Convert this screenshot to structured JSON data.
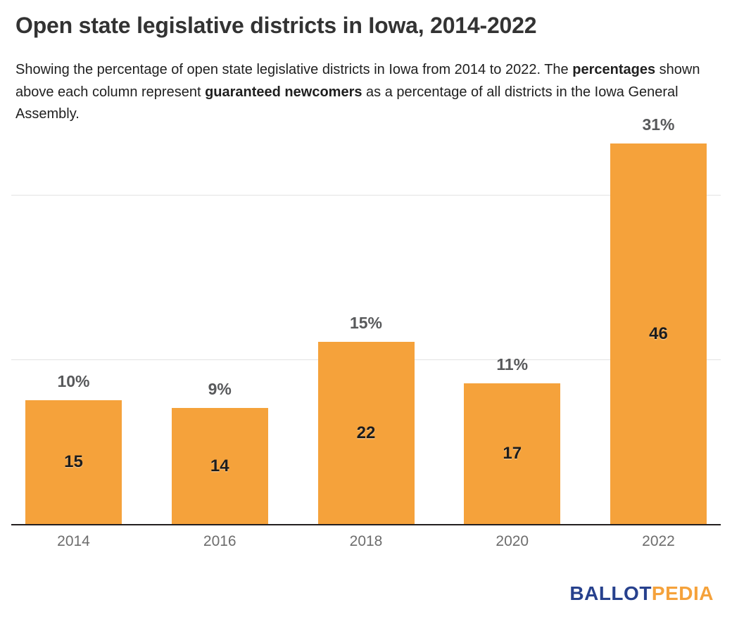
{
  "chart": {
    "title": "Open state legislative districts in Iowa, 2014-2022",
    "subtitle_parts": {
      "p1": "Showing the percentage of open state legislative districts in Iowa from 2014 to 2022. The ",
      "p2": "percentages",
      "p3": " shown above each column represent ",
      "p4": "guaranteed newcomers",
      "p5": " as a percentage of all districts in the Iowa General Assembly."
    }
  },
  "chart_data": {
    "type": "bar",
    "title": "Open state legislative districts in Iowa, 2014-2022",
    "categories": [
      "2014",
      "2016",
      "2018",
      "2020",
      "2022"
    ],
    "values": [
      15,
      14,
      22,
      17,
      46
    ],
    "percent_labels": [
      "10%",
      "9%",
      "15%",
      "11%",
      "31%"
    ],
    "xlabel": "",
    "ylabel": "",
    "ylim": [
      0,
      46
    ],
    "grid": "horizontal",
    "legend": "none",
    "bar_color": "#f5a23b",
    "value_label_position": "inside-center",
    "percent_label_position": "above-bar"
  },
  "colors": {
    "bar_orange": "#f5a23b",
    "title_text": "#333333",
    "body_text": "#1f1f1f",
    "percent_label": "#58595b",
    "axis_label": "#6d6d6d",
    "gridline": "#e2e2e2",
    "baseline": "#231f20",
    "logo_blue": "#27418d",
    "logo_orange": "#f5a23b"
  },
  "logo": {
    "ballot": "BALLOT",
    "pedia": "PEDIA"
  }
}
